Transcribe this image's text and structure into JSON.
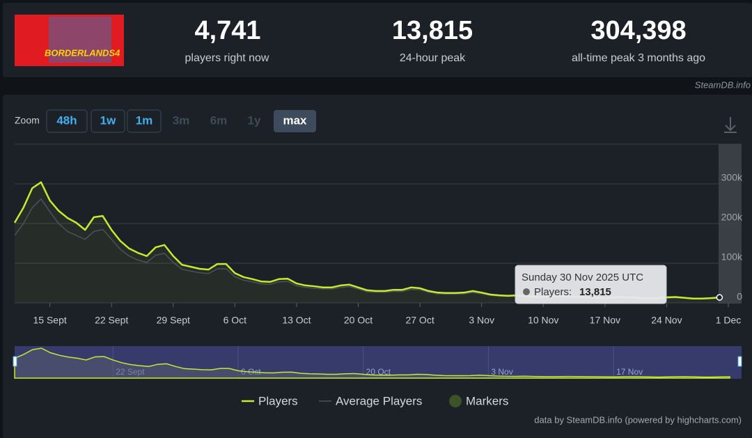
{
  "header": {
    "logo_text": "BORDERLANDS4",
    "stats": [
      {
        "value": "4,741",
        "label": "players right now"
      },
      {
        "value": "13,815",
        "label": "24-hour peak"
      },
      {
        "value": "304,398",
        "label": "all-time peak 3 months ago"
      }
    ],
    "watermark": "SteamDB.info"
  },
  "zoom": {
    "label": "Zoom",
    "buttons": [
      "48h",
      "1w",
      "1m",
      "3m",
      "6m",
      "1y",
      "max"
    ]
  },
  "chart_data": {
    "type": "line",
    "x": [
      "2025-09-11",
      "2025-09-12",
      "2025-09-13",
      "2025-09-14",
      "2025-09-15",
      "2025-09-16",
      "2025-09-17",
      "2025-09-18",
      "2025-09-19",
      "2025-09-20",
      "2025-09-21",
      "2025-09-22",
      "2025-09-23",
      "2025-09-24",
      "2025-09-25",
      "2025-09-26",
      "2025-09-27",
      "2025-09-28",
      "2025-09-29",
      "2025-09-30",
      "2025-10-01",
      "2025-10-02",
      "2025-10-03",
      "2025-10-04",
      "2025-10-05",
      "2025-10-06",
      "2025-10-07",
      "2025-10-08",
      "2025-10-09",
      "2025-10-10",
      "2025-10-11",
      "2025-10-12",
      "2025-10-13",
      "2025-10-14",
      "2025-10-15",
      "2025-10-16",
      "2025-10-17",
      "2025-10-18",
      "2025-10-19",
      "2025-10-20",
      "2025-10-21",
      "2025-10-22",
      "2025-10-23",
      "2025-10-24",
      "2025-10-25",
      "2025-10-26",
      "2025-10-27",
      "2025-10-28",
      "2025-10-29",
      "2025-10-30",
      "2025-10-31",
      "2025-11-01",
      "2025-11-02",
      "2025-11-03",
      "2025-11-04",
      "2025-11-05",
      "2025-11-06",
      "2025-11-07",
      "2025-11-08",
      "2025-11-09",
      "2025-11-10",
      "2025-11-11",
      "2025-11-12",
      "2025-11-13",
      "2025-11-14",
      "2025-11-15",
      "2025-11-16",
      "2025-11-17",
      "2025-11-18",
      "2025-11-19",
      "2025-11-20",
      "2025-11-21",
      "2025-11-22",
      "2025-11-23",
      "2025-11-24",
      "2025-11-25",
      "2025-11-26",
      "2025-11-27",
      "2025-11-28",
      "2025-11-29",
      "2025-11-30"
    ],
    "series": [
      {
        "name": "Players",
        "color": "#c6ea2f",
        "values": [
          202000,
          240000,
          289000,
          304000,
          258000,
          232000,
          214000,
          202000,
          184000,
          216000,
          219000,
          184000,
          156000,
          137000,
          126000,
          118000,
          140000,
          146000,
          118000,
          96000,
          91000,
          86000,
          84000,
          98000,
          98000,
          75000,
          65000,
          60000,
          54000,
          53000,
          60000,
          61000,
          49000,
          44000,
          42000,
          39000,
          39000,
          44000,
          46000,
          39000,
          32000,
          30000,
          30000,
          33000,
          33000,
          39000,
          37000,
          30000,
          26000,
          25000,
          25000,
          26000,
          30000,
          26000,
          21000,
          19000,
          18000,
          19000,
          17000,
          16000,
          15000,
          16000,
          17000,
          16000,
          15000,
          14000,
          13000,
          12000,
          14000,
          15000,
          14000,
          12000,
          11000,
          12000,
          14000,
          15000,
          13000,
          11000,
          11000,
          12000,
          13815
        ]
      },
      {
        "name": "Average Players",
        "color": "#4b525b",
        "values": [
          170000,
          200000,
          240000,
          262000,
          230000,
          200000,
          180000,
          170000,
          160000,
          180000,
          185000,
          160000,
          135000,
          118000,
          108000,
          102000,
          120000,
          125000,
          102000,
          85000,
          80000,
          76000,
          74000,
          86000,
          86000,
          66000,
          57000,
          53000,
          48000,
          47000,
          53000,
          54000,
          43000,
          39000,
          37000,
          35000,
          35000,
          39000,
          41000,
          35000,
          28000,
          27000,
          27000,
          29000,
          29000,
          34000,
          33000,
          27000,
          23000,
          22000,
          22000,
          23000,
          26000,
          23000,
          19000,
          17000,
          16000,
          17000,
          15000,
          14000,
          13000,
          14000,
          15000,
          14000,
          13000,
          12000,
          12000,
          11000,
          12000,
          13000,
          12000,
          11000,
          10000,
          11000,
          12000,
          13000,
          12000,
          10000,
          10000,
          11000,
          12000
        ]
      }
    ],
    "markers_label": "Markers",
    "markers_color": "#3e5228",
    "xlim": [
      "2025-09-11",
      "2025-12-01"
    ],
    "xticks": [
      {
        "value": "2025-09-15",
        "label": "15 Sept"
      },
      {
        "value": "2025-09-22",
        "label": "22 Sept"
      },
      {
        "value": "2025-09-29",
        "label": "29 Sept"
      },
      {
        "value": "2025-10-06",
        "label": "6 Oct"
      },
      {
        "value": "2025-10-13",
        "label": "13 Oct"
      },
      {
        "value": "2025-10-20",
        "label": "20 Oct"
      },
      {
        "value": "2025-10-27",
        "label": "27 Oct"
      },
      {
        "value": "2025-11-03",
        "label": "3 Nov"
      },
      {
        "value": "2025-11-10",
        "label": "10 Nov"
      },
      {
        "value": "2025-11-17",
        "label": "17 Nov"
      },
      {
        "value": "2025-11-24",
        "label": "24 Nov"
      },
      {
        "value": "2025-12-01",
        "label": "1 Dec"
      }
    ],
    "ylim": [
      0,
      400000
    ],
    "yticks": [
      0,
      {
        "value": 100000,
        "label": "100k"
      },
      {
        "value": 200000,
        "label": "200k"
      },
      {
        "value": 300000,
        "label": "300k"
      }
    ],
    "grid": true,
    "tooltip": {
      "date": "Sunday 30 Nov 2025 UTC",
      "label": "Players:",
      "value": "13,815"
    },
    "navigator_xticks": [
      {
        "value": "2025-09-22",
        "label": "22 Sept"
      },
      {
        "value": "2025-10-06",
        "label": "6 Oct"
      },
      {
        "value": "2025-10-20",
        "label": "20 Oct"
      },
      {
        "value": "2025-11-03",
        "label": "3 Nov"
      },
      {
        "value": "2025-11-17",
        "label": "17 Nov"
      }
    ],
    "credit": "data by SteamDB.info (powered by highcharts.com)"
  }
}
